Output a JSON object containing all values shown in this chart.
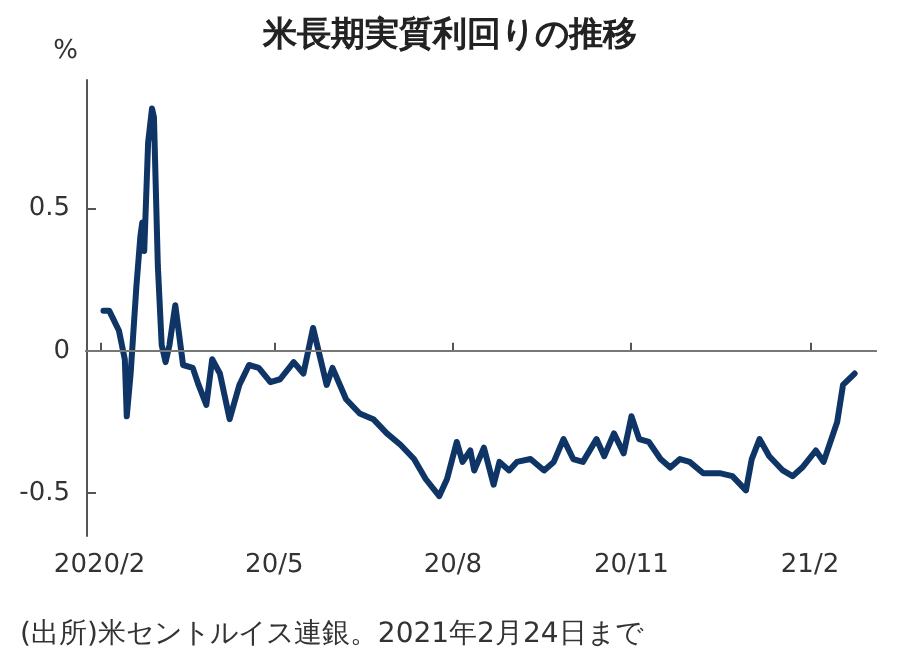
{
  "chart_data": {
    "type": "line",
    "title": "米長期実質利回りの推移",
    "ylabel": "%",
    "annotations": [
      "(出所)米セントルイス連銀。2021年2月24日まで"
    ],
    "x": [
      "2020-02-03",
      "2020-02-06",
      "2020-02-11",
      "2020-02-14",
      "2020-02-15",
      "2020-02-17",
      "2020-02-20",
      "2020-02-22",
      "2020-02-23",
      "2020-02-24",
      "2020-02-26",
      "2020-02-28",
      "2020-02-29",
      "2020-03-02",
      "2020-03-04",
      "2020-03-06",
      "2020-03-08",
      "2020-03-11",
      "2020-03-15",
      "2020-03-20",
      "2020-03-23",
      "2020-03-27",
      "2020-03-30",
      "2020-04-03",
      "2020-04-08",
      "2020-04-13",
      "2020-04-18",
      "2020-04-23",
      "2020-04-29",
      "2020-05-04",
      "2020-05-11",
      "2020-05-16",
      "2020-05-21",
      "2020-05-28",
      "2020-05-31",
      "2020-06-07",
      "2020-06-14",
      "2020-06-21",
      "2020-06-28",
      "2020-07-05",
      "2020-07-12",
      "2020-07-18",
      "2020-07-25",
      "2020-07-29",
      "2020-08-03",
      "2020-08-06",
      "2020-08-10",
      "2020-08-12",
      "2020-08-17",
      "2020-08-22",
      "2020-08-25",
      "2020-08-30",
      "2020-09-03",
      "2020-09-10",
      "2020-09-17",
      "2020-09-22",
      "2020-09-27",
      "2020-10-02",
      "2020-10-07",
      "2020-10-14",
      "2020-10-18",
      "2020-10-23",
      "2020-10-28",
      "2020-11-01",
      "2020-11-05",
      "2020-11-10",
      "2020-11-16",
      "2020-11-21",
      "2020-11-26",
      "2020-12-01",
      "2020-12-08",
      "2020-12-17",
      "2020-12-23",
      "2020-12-30",
      "2021-01-02",
      "2021-01-06",
      "2021-01-11",
      "2021-01-18",
      "2021-01-23",
      "2021-01-28",
      "2021-02-04",
      "2021-02-08",
      "2021-02-15",
      "2021-02-18",
      "2021-02-24"
    ],
    "series": [
      {
        "color": "#0f3566",
        "values": [
          0.14,
          0.14,
          0.07,
          -0.03,
          -0.23,
          -0.08,
          0.23,
          0.4,
          0.45,
          0.35,
          0.73,
          0.85,
          0.82,
          0.3,
          0.02,
          -0.04,
          0.02,
          0.16,
          -0.05,
          -0.06,
          -0.12,
          -0.19,
          -0.03,
          -0.08,
          -0.24,
          -0.12,
          -0.05,
          -0.06,
          -0.11,
          -0.1,
          -0.04,
          -0.08,
          0.08,
          -0.12,
          -0.06,
          -0.17,
          -0.22,
          -0.24,
          -0.29,
          -0.33,
          -0.38,
          -0.45,
          -0.51,
          -0.45,
          -0.32,
          -0.39,
          -0.35,
          -0.42,
          -0.34,
          -0.47,
          -0.39,
          -0.42,
          -0.39,
          -0.38,
          -0.42,
          -0.39,
          -0.31,
          -0.38,
          -0.39,
          -0.31,
          -0.37,
          -0.29,
          -0.36,
          -0.23,
          -0.31,
          -0.32,
          -0.38,
          -0.41,
          -0.38,
          -0.39,
          -0.43,
          -0.43,
          -0.44,
          -0.49,
          -0.38,
          -0.31,
          -0.37,
          -0.42,
          -0.44,
          -0.41,
          -0.35,
          -0.39,
          -0.25,
          -0.12,
          -0.08
        ]
      }
    ],
    "xlim": [
      "2020-01-25",
      "2021-03-07"
    ],
    "xticks": [
      {
        "value": "2020-02-01",
        "label": "2020/2"
      },
      {
        "value": "2020-05-01",
        "label": "20/5"
      },
      {
        "value": "2020-08-01",
        "label": "20/8"
      },
      {
        "value": "2020-11-01",
        "label": "20/11"
      },
      {
        "value": "2021-02-01",
        "label": "21/2"
      }
    ],
    "ylim": [
      -0.65,
      0.95
    ],
    "yticks": [
      -0.5,
      0,
      0.5
    ],
    "ref_lines": [
      {
        "axis": "y",
        "value": 0,
        "color": "#777777"
      }
    ],
    "grid": false,
    "marker": "none",
    "line_style": "solid"
  }
}
